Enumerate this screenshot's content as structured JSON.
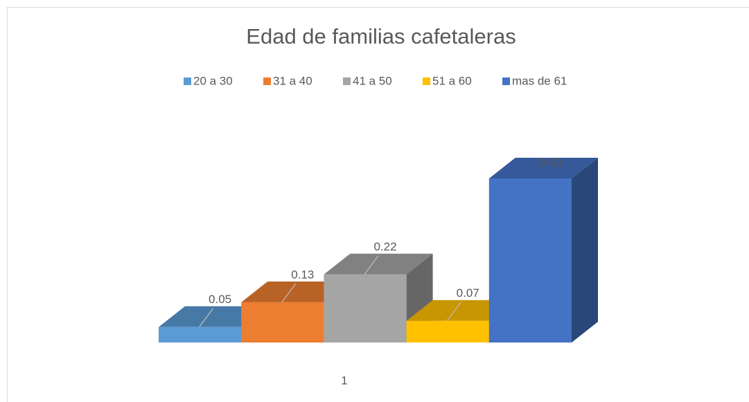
{
  "chart_data": {
    "type": "bar3d",
    "title": "Edad de familias cafetaleras",
    "categories": [
      "1"
    ],
    "series": [
      {
        "name": "20 a 30",
        "color": "#5b9bd5",
        "values": [
          0.05
        ]
      },
      {
        "name": "31 a 40",
        "color": "#ed7d31",
        "values": [
          0.13
        ]
      },
      {
        "name": "41 a 50",
        "color": "#a5a5a5",
        "values": [
          0.22
        ]
      },
      {
        "name": "51 a 60",
        "color": "#ffc000",
        "values": [
          0.07
        ]
      },
      {
        "name": "mas de 61",
        "color": "#4472c4",
        "values": [
          0.53
        ]
      }
    ],
    "legend": "top"
  }
}
